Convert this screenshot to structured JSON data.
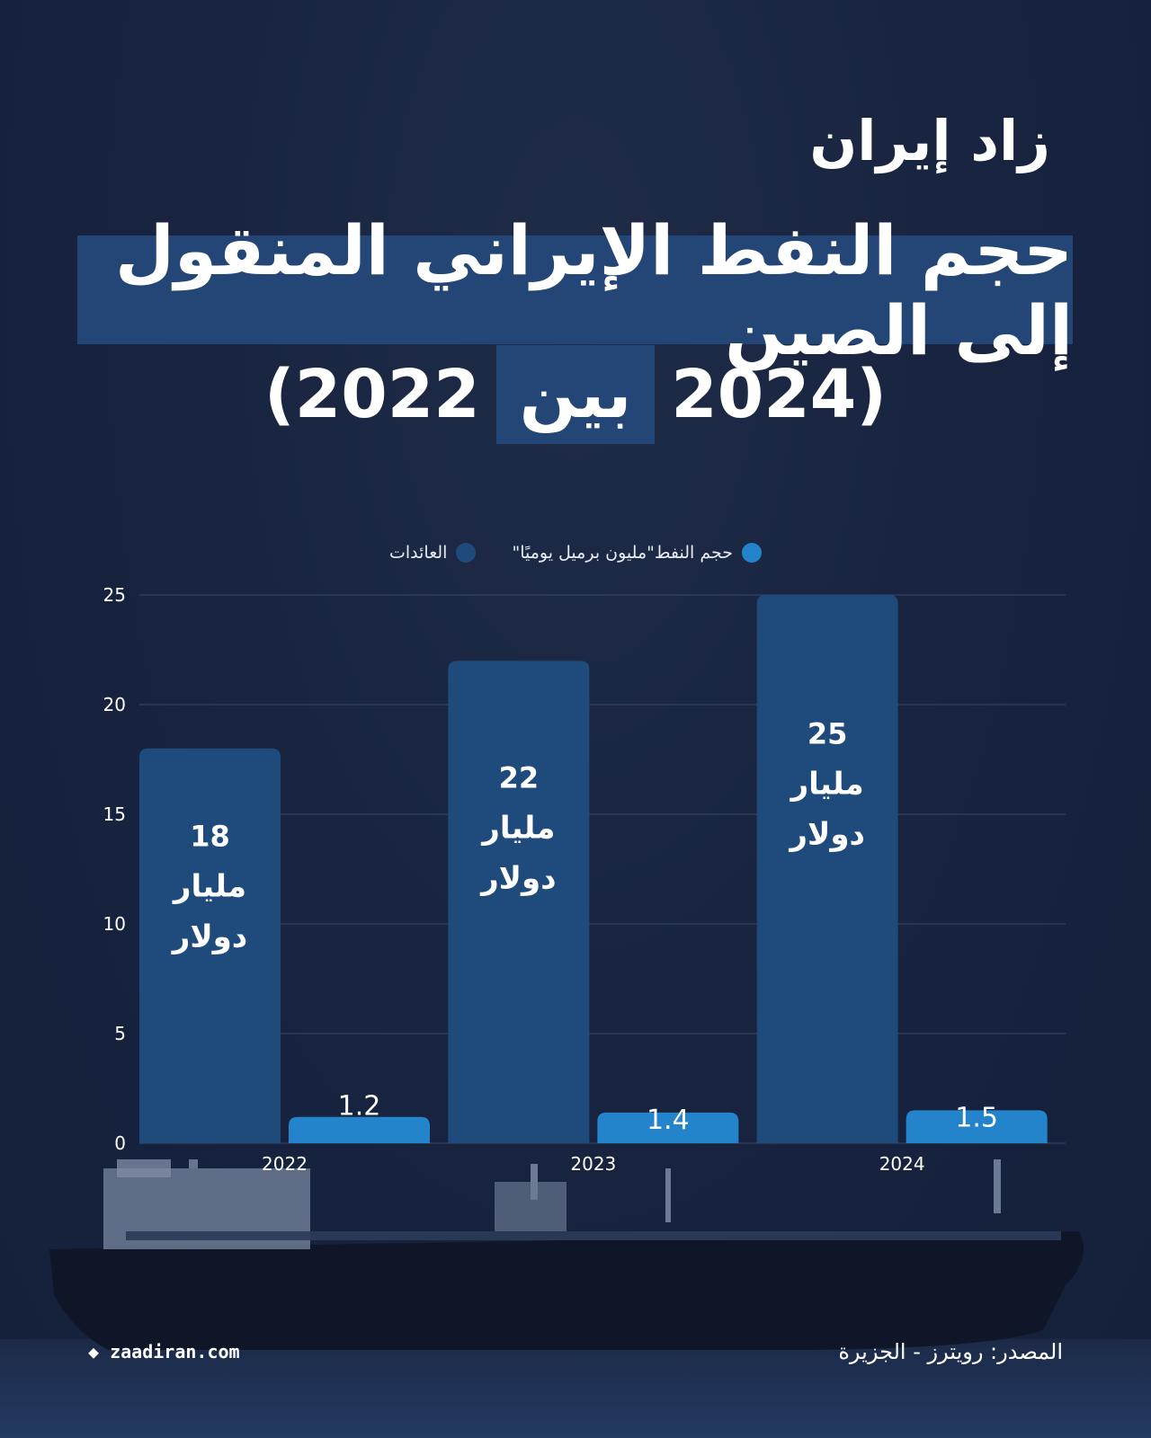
{
  "logo": {
    "text": "زاد إيران"
  },
  "title": {
    "line1": "حجم النفط الإيراني المنقول إلى الصين",
    "line2_left": "(2022",
    "line2_word": "بين",
    "line2_right": "2024)"
  },
  "legend": {
    "oil_label": "حجم النفط\"مليون برميل يوميًا\"",
    "revenue_label": "العائدات"
  },
  "colors": {
    "revenue": "#1f4a7c",
    "oil": "#2384cc",
    "background": "#182440"
  },
  "chart_data": {
    "type": "bar",
    "categories": [
      "2022",
      "2023",
      "2024"
    ],
    "series": [
      {
        "name": "العائدات",
        "values": [
          18,
          22,
          25
        ],
        "labels": [
          "18\nمليار\nدولار",
          "22\nمليار\nدولار",
          "25\nمليار\nدولار"
        ]
      },
      {
        "name": "حجم النفط\"مليون برميل يوميًا\"",
        "values": [
          1.2,
          1.4,
          1.5
        ],
        "labels": [
          "1.2",
          "1.4",
          "1.5"
        ]
      }
    ],
    "ylim": [
      0,
      25
    ],
    "yticks": [
      0,
      5,
      10,
      15,
      20,
      25
    ],
    "grid": true,
    "legend_position": "top-center"
  },
  "footer": {
    "website": "zaadiran.com",
    "source": "المصدر: رويترز - الجزيرة"
  }
}
